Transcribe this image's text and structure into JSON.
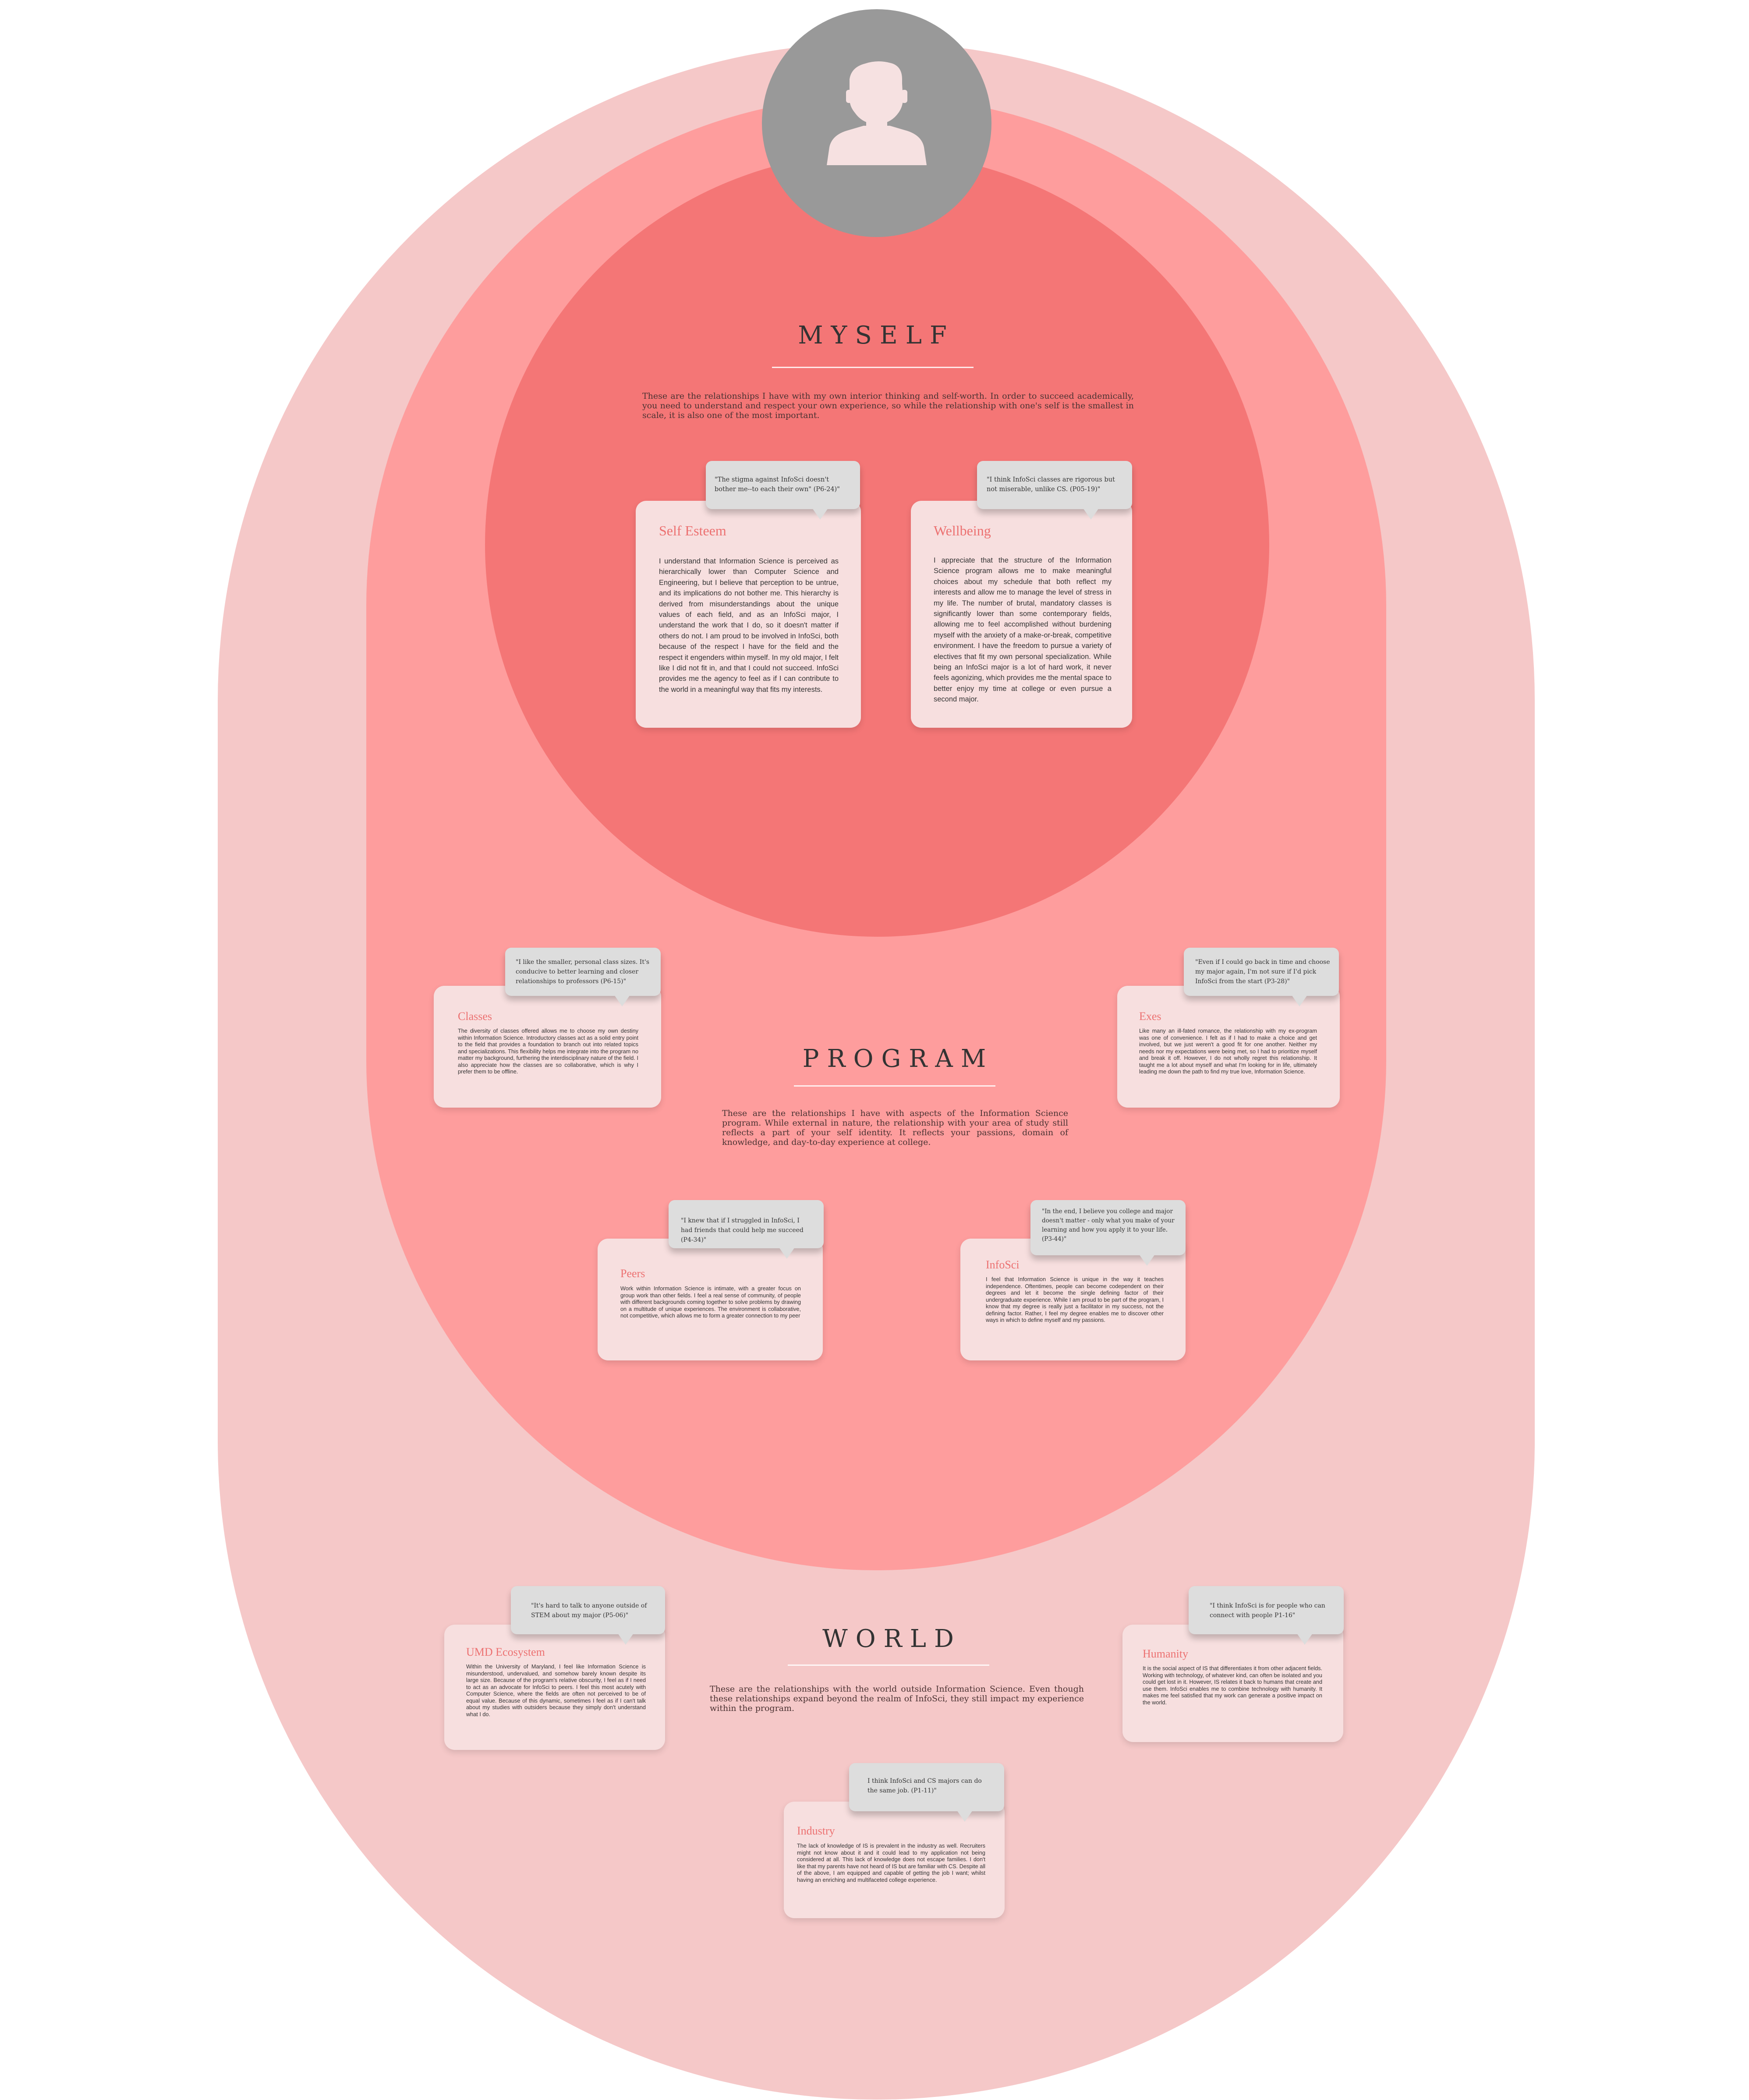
{
  "colors": {
    "world": "#f5c8c8",
    "program": "#fe9d9d",
    "myself": "#f47676",
    "avatar": "#999999",
    "card": "#f7dfdf",
    "card_title": "#ec7171",
    "bubble": "#dddddd"
  },
  "avatar": {
    "icon": "user-icon"
  },
  "myself": {
    "title": "MYSELF",
    "desc": "These are the relationships I have with my own interior thinking and self-worth. In order to succeed academically, you need to understand and respect your own experience, so while the relationship with one's self is the smallest in scale, it is also one of the most important.",
    "cards": [
      {
        "title": "Self Esteem",
        "quote": "\"The stigma against InfoSci doesn't bother me--to each their own\" (P6-24)\"",
        "body": "I understand that Information Science is perceived as hierarchically lower than Computer Science and Engineering, but I believe that perception to be untrue, and its implications do not bother me. This hierarchy is derived from misunderstandings about the unique values of each field, and as an InfoSci major, I understand the work that I do, so it doesn't matter if others do not. I am proud to be involved in InfoSci, both because of the respect I have for the field and the respect it engenders within myself. In my old major, I felt like I did not fit in, and that I could not succeed. InfoSci provides me the agency to feel as if I can contribute to the world in a meaningful way that fits my interests."
      },
      {
        "title": "Wellbeing",
        "quote": "\"I think InfoSci classes are rigorous but not miserable, unlike CS. (P05-19)\"",
        "body": "I appreciate that the structure of the Information Science program allows me to make meaningful choices about my schedule that both reflect my interests and allow me to manage the level of stress in my life. The number of brutal, mandatory classes is significantly lower than some contemporary fields, allowing me to feel accomplished without burdening myself with the anxiety of a make-or-break, competitive environment. I have the freedom to pursue a variety of electives that fit my own personal specialization. While being an InfoSci major is a lot of hard work, it never feels agonizing, which provides me the mental space to better enjoy my time at college or even pursue a second major."
      }
    ]
  },
  "program": {
    "title": "PROGRAM",
    "desc": "These are the relationships I have with aspects of the Information Science program. While external in nature, the relationship with your area of study still reflects a part of your self identity. It reflects your passions, domain of knowledge, and day-to-day experience at college.",
    "cards": [
      {
        "title": "Classes",
        "quote": "\"I like the smaller, personal class sizes. It's conducive to better learning and closer relationships to professors (P6-15)\"",
        "body": "The diversity of classes offered allows me to choose my own destiny within Information Science. Introductory classes act as a solid entry point to the field that provides a foundation to branch out into related topics and specializations. This flexibility helps me integrate into the program no matter my background, furthering the interdisciplinary nature of the field. I also appreciate how the classes are so collaborative, which is why I prefer them to be offline."
      },
      {
        "title": "Exes",
        "quote": "\"Even if I could go back in time and choose my major again, I'm not sure if I'd pick InfoSci from the start (P3-28)\"",
        "body": "Like many an ill-fated romance, the relationship with my ex-program was one of convenience. I felt as if I had to make a choice and get involved, but we just weren't a good fit for one another. Neither my needs nor my expectations were being met, so I had to prioritize myself and break it off. However, I do not wholly regret this relationship. It taught me a lot about myself and what I'm looking for in life, ultimately leading me down the path to find my true love, Information Science."
      },
      {
        "title": "Peers",
        "quote": "\"I knew that if I struggled in InfoSci, I had friends that could help me succeed (P4-34)\"",
        "body": "Work within Information Science is intimate, with a greater focus on group work than other fields. I feel a real sense of community, of people with different backgrounds coming together to solve problems by drawing on a multitude of unique experiences. The environment is collaborative, not competitive, which allows me to form a greater connection to my peer"
      },
      {
        "title": "InfoSci",
        "quote": "\"In the end, I believe you college and major doesn't matter - only what you make of your learning and how you apply it to your life. (P3-44)\"",
        "body": "I feel that Information Science is unique in the way it teaches independence. Oftentimes, people can become codependent on their degrees and let it become the single defining factor of their undergraduate experience. While I am proud to be part of the program, I know that my degree is really just a facilitator in my success, not the defining factor. Rather, I feel my degree enables me to discover other ways in which to define myself and my passions."
      }
    ]
  },
  "world": {
    "title": "WORLD",
    "desc": "These are the relationships with the world outside Information Science. Even though these relationships expand beyond the realm of InfoSci, they still impact my experience within the program.",
    "cards": [
      {
        "title": "UMD Ecosystem",
        "quote": "\"It's hard to talk to anyone outside of STEM about my major (P5-06)\"",
        "body": "Within the University of Maryland, I feel like Information Science is misunderstood, undervalued, and somehow barely known despite its large size. Because of the program's relative obscurity, I feel as if I need to act as an advocate for InfoSci to peers. I feel this most acutely with Computer Science, where the fields are often not perceived to be of equal value. Because of this dynamic, sometimes I feel as if I can't talk about my studies with outsiders because they simply don't understand what I do."
      },
      {
        "title": "Humanity",
        "quote": "\"I think InfoSci is for people who can connect with people P1-16\"",
        "body": "It is the social aspect of IS that differentiates it from other adjacent fields. Working with technology, of whatever kind, can often be isolated and you could get lost in it. However, IS relates it back to humans that create and use them. InfoSci enables me to combine technology with humanity. It makes me feel satisfied that my work can generate a positive impact on the world."
      },
      {
        "title": "Industry",
        "quote": "I think InfoSci and CS majors can do the same job. (P1-11)\"",
        "body": "The lack of knowledge of IS is prevalent in the industry as well. Recruiters might not know about it and it could lead to my application not being considered at all. This lack of knowledge does not escape families. I don't like that my parents have not heard of IS but are familiar with CS. Despite all of the above, I am equipped and capable of getting the job I want; whilst having an enriching and multifaceted college experience."
      }
    ]
  }
}
